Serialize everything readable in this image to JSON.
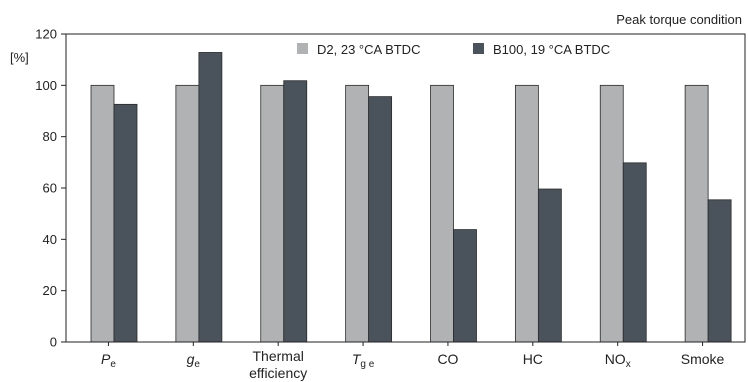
{
  "chart_data": {
    "type": "bar",
    "title": "Peak torque condition",
    "ylabel": "[%]",
    "xlabel": "",
    "ylim": [
      0,
      120
    ],
    "yticks": [
      0,
      20,
      40,
      60,
      80,
      100,
      120
    ],
    "grid": false,
    "legend_position": "top",
    "categories": [
      {
        "text": "P",
        "sub": "e",
        "italic": true
      },
      {
        "text": "g",
        "sub": "e",
        "italic": true
      },
      {
        "text": "Thermal",
        "line2": "efficiency",
        "italic": false
      },
      {
        "text": "T",
        "sub": "g e",
        "italic": true
      },
      {
        "text": "CO",
        "sub": "",
        "italic": false
      },
      {
        "text": "HC",
        "sub": "",
        "italic": false
      },
      {
        "text": "NO",
        "sub": "x",
        "italic": false
      },
      {
        "text": "Smoke",
        "sub": "",
        "italic": false
      }
    ],
    "series": [
      {
        "name": "D2, 23 °CA BTDC",
        "color": "#b0b2b4",
        "values": [
          100,
          100,
          100,
          100,
          100,
          100,
          100,
          100
        ]
      },
      {
        "name": "B100, 19 °CA BTDC",
        "color": "#4a535b",
        "values": [
          92.6,
          112.8,
          101.8,
          95.6,
          43.8,
          59.6,
          69.8,
          55.4
        ]
      }
    ]
  }
}
